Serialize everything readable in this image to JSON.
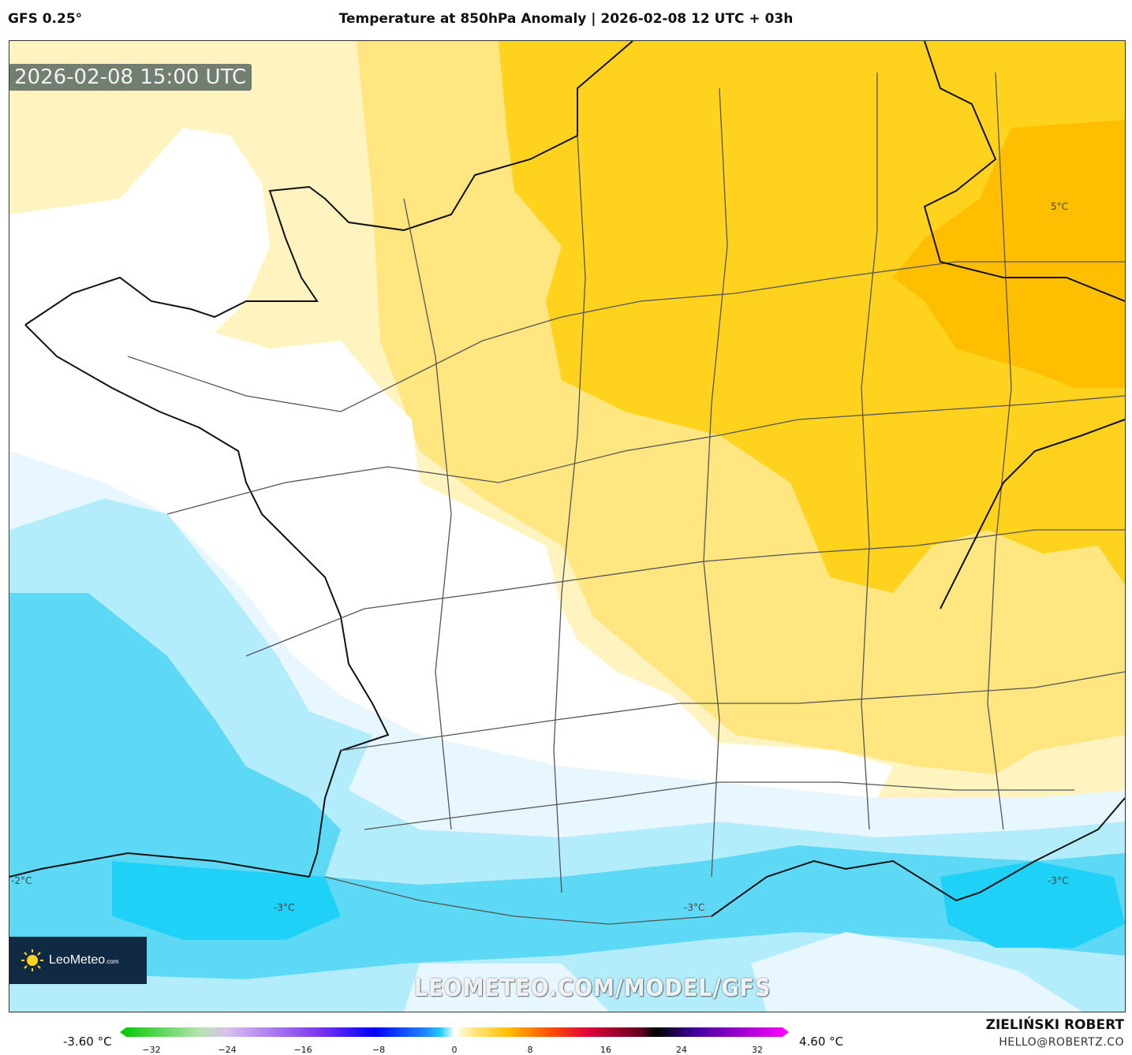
{
  "header": {
    "model": "GFS 0.25°",
    "title": "Temperature at 850hPa Anomaly | 2026-02-08 12 UTC + 03h"
  },
  "map": {
    "valid_time": "2026-02-08 15:00 UTC",
    "watermark": "LEOMETEO.COM/MODEL/GFS",
    "contour_labels": [
      "5°C",
      "-2°C",
      "-3°C",
      "-3°C",
      "-3°C"
    ],
    "colors": {
      "warm_light": "#fff4c0",
      "warm_mid": "#ffe680",
      "warm": "#ffd21e",
      "warm_strong": "#ffbf00",
      "cold_light": "#e8f7ff",
      "cold_mid": "#b3ecfb",
      "cold": "#5dd9f6",
      "cold_strong": "#1fd0f7"
    }
  },
  "logo": {
    "name": "LeoMeteo",
    "suffix": ".com"
  },
  "colorbar": {
    "min_label": "-3.60 °C",
    "max_label": "4.60 °C",
    "ticks": [
      "−32",
      "−24",
      "−16",
      "−8",
      "0",
      "8",
      "16",
      "24",
      "32"
    ]
  },
  "credit": {
    "name": "ZIELIŃSKI ROBERT",
    "email": "HELLO@ROBERTZ.CO"
  }
}
